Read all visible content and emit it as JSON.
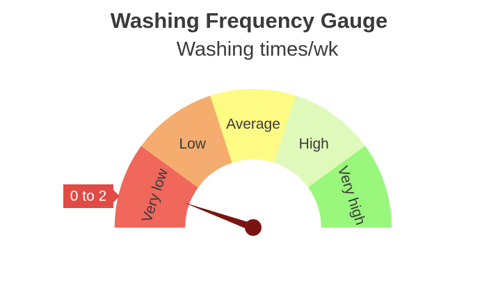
{
  "chart_data": {
    "type": "gauge",
    "title": "Washing Frequency Gauge",
    "subtitle": "Washing times/wk",
    "bands": [
      {
        "label": "Very low",
        "color": "#f0675c",
        "range": [
          0,
          2
        ]
      },
      {
        "label": "Low",
        "color": "#f4ad6e",
        "range": [
          2,
          4
        ]
      },
      {
        "label": "Average",
        "color": "#fdfb84",
        "range": [
          4,
          6
        ]
      },
      {
        "label": "High",
        "color": "#dff9ba",
        "range": [
          6,
          8
        ]
      },
      {
        "label": "Very high",
        "color": "#99f77b",
        "range": [
          8,
          10
        ]
      }
    ],
    "range": [
      0,
      10
    ],
    "needle": {
      "value": 1.1,
      "color": "#7a1410"
    },
    "hover_label": {
      "text": "0 to 2",
      "color": "#e24a44"
    }
  }
}
